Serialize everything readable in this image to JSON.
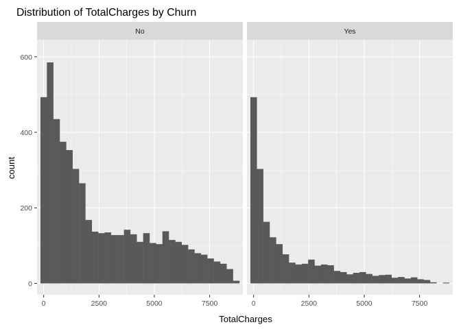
{
  "chart_data": {
    "type": "bar",
    "subtype": "faceted-histogram",
    "title": "Distribution of TotalCharges by Churn",
    "xlabel": "TotalCharges",
    "ylabel": "count",
    "xlim": [
      -300,
      9000
    ],
    "ylim": [
      -30,
      645
    ],
    "x_ticks": [
      0,
      2500,
      5000,
      7500
    ],
    "y_ticks": [
      0,
      200,
      400,
      600
    ],
    "bin_width": 290,
    "bin_start": -145,
    "grid": true,
    "facets": [
      {
        "label": "No",
        "counts": [
          493,
          585,
          435,
          375,
          353,
          303,
          265,
          168,
          137,
          133,
          135,
          128,
          128,
          142,
          130,
          110,
          133,
          107,
          104,
          138,
          115,
          110,
          102,
          90,
          80,
          76,
          66,
          58,
          52,
          38,
          7
        ]
      },
      {
        "label": "Yes",
        "counts": [
          493,
          303,
          163,
          122,
          104,
          77,
          55,
          50,
          52,
          63,
          47,
          50,
          48,
          33,
          30,
          24,
          28,
          30,
          25,
          20,
          22,
          23,
          15,
          17,
          13,
          16,
          11,
          9,
          3,
          0,
          2
        ]
      }
    ]
  }
}
